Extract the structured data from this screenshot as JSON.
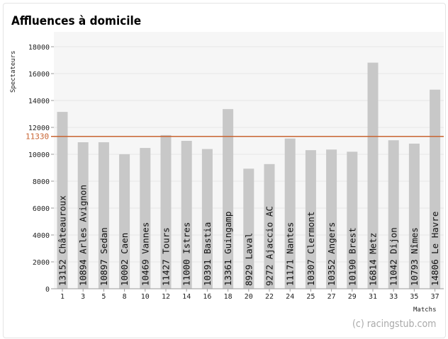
{
  "chart_data": {
    "type": "bar",
    "title": "Affluences à domicile",
    "ylabel": "Spectateurs",
    "xlabel": "Matchs",
    "watermark": "(c) racingstub.com",
    "ylim": [
      0,
      19000
    ],
    "yticks": [
      0,
      2000,
      4000,
      6000,
      8000,
      10000,
      12000,
      14000,
      16000,
      18000
    ],
    "average": 11330,
    "average_label": "11330",
    "categories": [
      "1",
      "3",
      "5",
      "8",
      "10",
      "12",
      "14",
      "16",
      "18",
      "20",
      "22",
      "24",
      "25",
      "27",
      "29",
      "31",
      "33",
      "35",
      "37"
    ],
    "values": [
      13152,
      10894,
      10897,
      10002,
      10469,
      11427,
      11000,
      10391,
      13361,
      8929,
      9272,
      11171,
      10307,
      10352,
      10190,
      16814,
      11042,
      10793,
      14806
    ],
    "bar_labels": [
      "13152 Châteauroux",
      "10894 Arles Avignon",
      "10897 Sedan",
      "10002 Caen",
      "10469 Vannes",
      "11427 Tours",
      "11000 Istres",
      "10391 Bastia",
      "13361 Guingamp",
      "8929 Laval",
      "9272 Ajaccio AC",
      "11171 Nantes",
      "10307 Clermont",
      "10352 Angers",
      "10190 Brest",
      "16814 Metz",
      "11042 Dijon",
      "10793 Nîmes",
      "14806 Le Havre"
    ],
    "grid": true,
    "colors": {
      "bar": "#c8c8c8",
      "average_line": "#c86432",
      "grid": "#e6e6e6",
      "plot_bg": "#f6f6f6"
    }
  }
}
